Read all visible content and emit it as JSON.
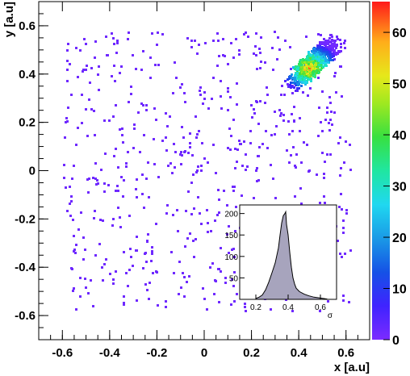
{
  "chart_data": [
    {
      "type": "heatmap",
      "title": "",
      "xlabel": "x [a.u]",
      "ylabel": "y [a.u]",
      "xlim": [
        -0.7,
        0.7
      ],
      "ylim": [
        -0.7,
        0.7
      ],
      "xticks": [
        -0.6,
        -0.4,
        -0.2,
        0,
        0.2,
        0.4,
        0.6
      ],
      "xtick_labels": [
        "-0.6",
        "-0.4",
        "-0.2",
        "0",
        "0.2",
        "0.4",
        "0.6"
      ],
      "yticks": [
        -0.6,
        -0.4,
        -0.2,
        0,
        0.2,
        0.4,
        0.6
      ],
      "ytick_labels": [
        "-0.6",
        "-0.4",
        "-0.2",
        "0",
        "0.2",
        "0.4",
        "0.6"
      ],
      "grid": false,
      "colorbar": {
        "min": 0,
        "max": 66,
        "ticks": [
          0,
          10,
          20,
          30,
          40,
          50,
          60
        ],
        "tick_labels": [
          "0",
          "10",
          "20",
          "30",
          "40",
          "50",
          "60"
        ]
      },
      "background_density": "sparse uniform, count 1 per bin",
      "hotspot": {
        "x": 0.44,
        "y": 0.43,
        "peak_count": 66,
        "orientation": "elongated along diagonal toward (0.62, 0.60)"
      }
    },
    {
      "type": "area",
      "title": "",
      "xlabel": "σ",
      "ylabel": "",
      "xlim": [
        0.1,
        0.7
      ],
      "ylim": [
        0,
        220
      ],
      "xticks": [
        0.2,
        0.4,
        0.6
      ],
      "xtick_labels": [
        "0.2",
        "0.4",
        "0.6"
      ],
      "yticks": [
        0,
        50,
        100,
        150,
        200
      ],
      "ytick_labels": [
        "",
        "50",
        "100",
        "150",
        "200"
      ],
      "x": [
        0.2,
        0.22,
        0.24,
        0.26,
        0.28,
        0.3,
        0.32,
        0.34,
        0.35,
        0.36,
        0.37,
        0.38,
        0.385,
        0.39,
        0.4,
        0.41,
        0.42,
        0.43,
        0.44,
        0.45,
        0.47,
        0.5,
        0.53,
        0.56,
        0.6,
        0.64
      ],
      "values": [
        2,
        5,
        10,
        22,
        40,
        62,
        85,
        120,
        150,
        178,
        195,
        200,
        204,
        175,
        150,
        110,
        75,
        50,
        36,
        26,
        18,
        12,
        8,
        5,
        3,
        1
      ]
    }
  ]
}
